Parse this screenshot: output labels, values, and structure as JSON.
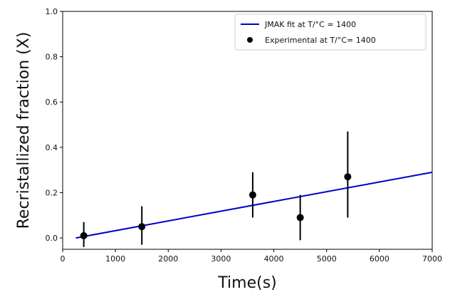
{
  "chart_data": {
    "type": "scatter",
    "title": "",
    "xlabel": "Time(s)",
    "ylabel": "Recristallized fraction (X)",
    "xlim": [
      0,
      7000
    ],
    "ylim": [
      -0.05,
      1.0
    ],
    "xticks": [
      0,
      1000,
      2000,
      3000,
      4000,
      5000,
      6000,
      7000
    ],
    "yticks": [
      0.0,
      0.2,
      0.4,
      0.6,
      0.8,
      1.0
    ],
    "xtick_labels": [
      "0",
      "1000",
      "2000",
      "3000",
      "4000",
      "5000",
      "6000",
      "7000"
    ],
    "ytick_labels": [
      "0.0",
      "0.2",
      "0.4",
      "0.6",
      "0.8",
      "1.0"
    ],
    "grid": false,
    "legend_position": "top-right",
    "series": [
      {
        "name": "JMAK fit at T/°C = 1400",
        "kind": "line",
        "color": "#0000cc",
        "x": [
          250,
          7000
        ],
        "y": [
          0.0,
          0.29
        ]
      },
      {
        "name": "Experimental at T/°C= 1400",
        "kind": "scatter-errorbar",
        "color": "#000000",
        "x": [
          400,
          1500,
          3600,
          4500,
          5400
        ],
        "y": [
          0.01,
          0.05,
          0.19,
          0.09,
          0.27
        ],
        "yerr_low": [
          0.05,
          0.08,
          0.1,
          0.1,
          0.18
        ],
        "yerr_high": [
          0.06,
          0.09,
          0.1,
          0.1,
          0.2
        ]
      }
    ]
  }
}
